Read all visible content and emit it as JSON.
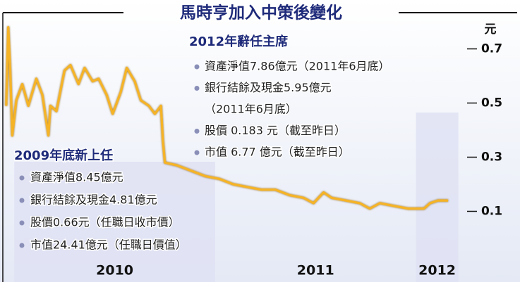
{
  "chart_data": {
    "type": "line",
    "title": "馬時亨加入中策後變化",
    "y_unit": "元",
    "x": [
      2009.96,
      2009.97,
      2009.98,
      2009.99,
      2010.01,
      2010.04,
      2010.07,
      2010.11,
      2010.14,
      2010.17,
      2010.18,
      2010.21,
      2010.25,
      2010.28,
      2010.32,
      2010.35,
      2010.39,
      2010.42,
      2010.46,
      2010.49,
      2010.53,
      2010.56,
      2010.6,
      2010.63,
      2010.67,
      2010.7,
      2010.73,
      2010.74,
      2010.75,
      2010.81,
      2010.88,
      2010.95,
      2011.02,
      2011.09,
      2011.16,
      2011.23,
      2011.3,
      2011.37,
      2011.44,
      2011.49,
      2011.54,
      2011.58,
      2011.65,
      2011.72,
      2011.77,
      2011.82,
      2011.89,
      2011.96,
      2012.04,
      2012.07,
      2012.11,
      2012.16
    ],
    "values": [
      0.49,
      0.78,
      0.62,
      0.38,
      0.51,
      0.57,
      0.49,
      0.59,
      0.53,
      0.38,
      0.49,
      0.47,
      0.62,
      0.64,
      0.57,
      0.63,
      0.58,
      0.59,
      0.53,
      0.46,
      0.54,
      0.63,
      0.58,
      0.51,
      0.49,
      0.46,
      0.49,
      0.36,
      0.28,
      0.27,
      0.25,
      0.23,
      0.22,
      0.2,
      0.19,
      0.18,
      0.18,
      0.16,
      0.15,
      0.13,
      0.17,
      0.15,
      0.14,
      0.13,
      0.11,
      0.13,
      0.12,
      0.11,
      0.11,
      0.13,
      0.14,
      0.14
    ],
    "color": "#f5b325",
    "xlim": [
      2009.95,
      2012.3
    ],
    "xticks": [
      2010,
      2011,
      2012
    ],
    "ylim": [
      0,
      0.8
    ],
    "yticks": [
      0.1,
      0.3,
      0.5,
      0.7
    ],
    "annotations": [
      {
        "heading": "2012年辭任主席",
        "items": [
          [
            "資產淨值7.86億元（2011年6月底）"
          ],
          [
            "銀行結餘及現金5.95億元",
            "（2011年6月底）"
          ],
          [
            "股價 0.183 元（截至昨日）"
          ],
          [
            "市值 6.77 億元（截至昨日）"
          ]
        ]
      },
      {
        "heading": "2009年底新上任",
        "items": [
          [
            "資產淨值8.45億元"
          ],
          [
            "銀行結餘及現金4.81億元"
          ],
          [
            "股價0.66元（任職日收市價）"
          ],
          [
            "市值24.41億元（任職日價值）"
          ]
        ]
      }
    ]
  }
}
